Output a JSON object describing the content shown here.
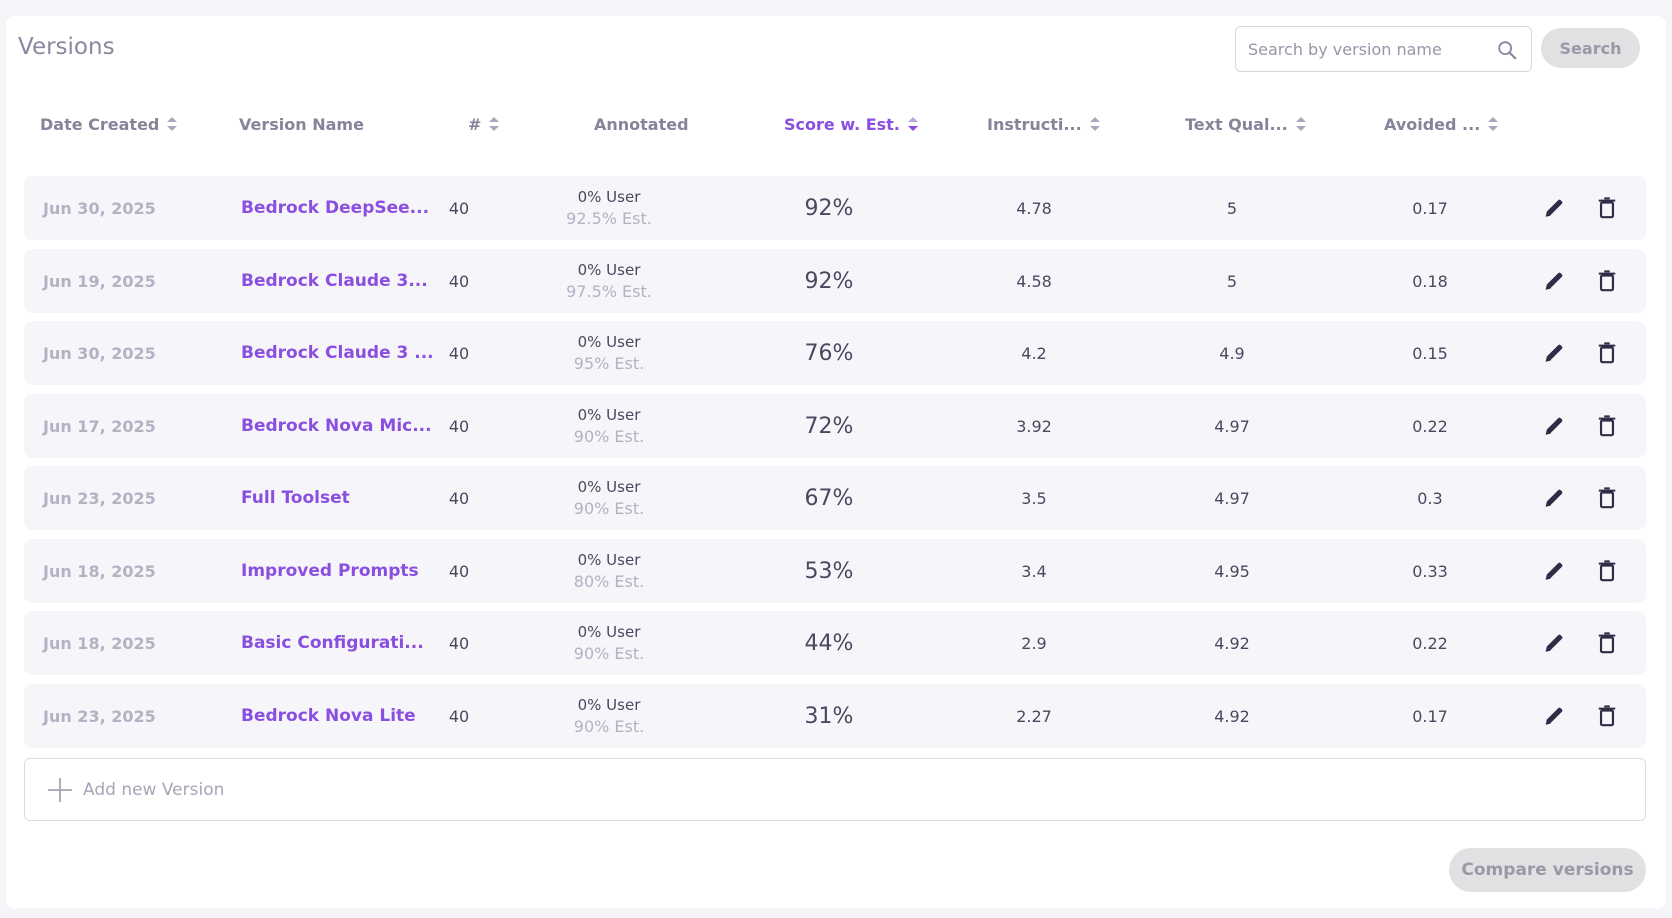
{
  "page": {
    "title": "Versions",
    "search": {
      "placeholder": "Search by version name",
      "value": "",
      "button_label": "Search"
    },
    "add_label": "Add new Version",
    "compare_label": "Compare versions"
  },
  "columns": [
    {
      "key": "date",
      "label": "Date Created",
      "sortable": true,
      "active": false
    },
    {
      "key": "name",
      "label": "Version Name",
      "sortable": false,
      "active": false
    },
    {
      "key": "num",
      "label": "#",
      "sortable": true,
      "active": false
    },
    {
      "key": "annotated",
      "label": "Annotated",
      "sortable": false,
      "active": false
    },
    {
      "key": "score",
      "label": "Score w. Est.",
      "sortable": true,
      "active": true
    },
    {
      "key": "instr",
      "label": "Instructi...",
      "sortable": true,
      "active": false
    },
    {
      "key": "text",
      "label": "Text Qual...",
      "sortable": true,
      "active": false
    },
    {
      "key": "avoid",
      "label": "Avoided ...",
      "sortable": true,
      "active": false
    }
  ],
  "rows": [
    {
      "date": "Jun 30, 2025",
      "name": "Bedrock DeepSee...",
      "num": "40",
      "ann_user": "0% User",
      "ann_est": "92.5% Est.",
      "score": "92%",
      "instr": "4.78",
      "text": "5",
      "avoid": "0.17"
    },
    {
      "date": "Jun 19, 2025",
      "name": "Bedrock Claude 3...",
      "num": "40",
      "ann_user": "0% User",
      "ann_est": "97.5% Est.",
      "score": "92%",
      "instr": "4.58",
      "text": "5",
      "avoid": "0.18"
    },
    {
      "date": "Jun 30, 2025",
      "name": "Bedrock Claude 3 ...",
      "num": "40",
      "ann_user": "0% User",
      "ann_est": "95% Est.",
      "score": "76%",
      "instr": "4.2",
      "text": "4.9",
      "avoid": "0.15"
    },
    {
      "date": "Jun 17, 2025",
      "name": "Bedrock Nova Mic...",
      "num": "40",
      "ann_user": "0% User",
      "ann_est": "90% Est.",
      "score": "72%",
      "instr": "3.92",
      "text": "4.97",
      "avoid": "0.22"
    },
    {
      "date": "Jun 23, 2025",
      "name": "Full Toolset",
      "num": "40",
      "ann_user": "0% User",
      "ann_est": "90% Est.",
      "score": "67%",
      "instr": "3.5",
      "text": "4.97",
      "avoid": "0.3"
    },
    {
      "date": "Jun 18, 2025",
      "name": "Improved Prompts",
      "num": "40",
      "ann_user": "0% User",
      "ann_est": "80% Est.",
      "score": "53%",
      "instr": "3.4",
      "text": "4.95",
      "avoid": "0.33"
    },
    {
      "date": "Jun 18, 2025",
      "name": "Basic Configurati...",
      "num": "40",
      "ann_user": "0% User",
      "ann_est": "90% Est.",
      "score": "44%",
      "instr": "2.9",
      "text": "4.92",
      "avoid": "0.22"
    },
    {
      "date": "Jun 23, 2025",
      "name": "Bedrock Nova Lite",
      "num": "40",
      "ann_user": "0% User",
      "ann_est": "90% Est.",
      "score": "31%",
      "instr": "2.27",
      "text": "4.92",
      "avoid": "0.17"
    }
  ],
  "icons": {
    "search": "search-icon",
    "edit": "pencil-icon",
    "delete": "trash-icon",
    "add": "plus-icon"
  },
  "colors": {
    "accent": "#8b4fe0",
    "muted": "#b3b1c3",
    "row_bg": "#f6f6fa",
    "button_bg": "#e1e1e4"
  }
}
